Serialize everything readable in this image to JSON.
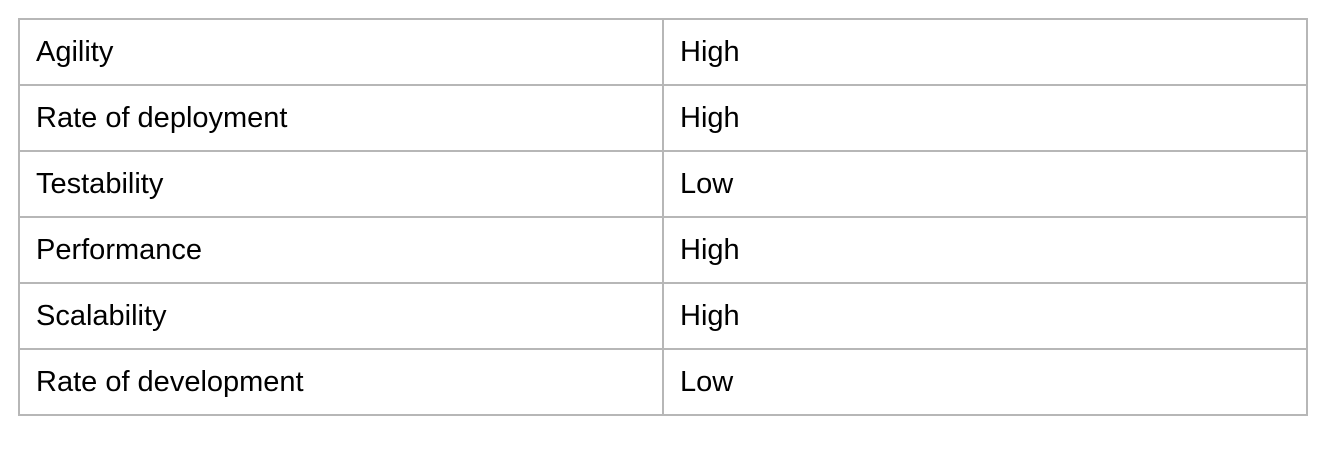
{
  "table": {
    "rows": [
      {
        "attribute": "Agility",
        "rating": "High"
      },
      {
        "attribute": "Rate of deployment",
        "rating": "High"
      },
      {
        "attribute": "Testability",
        "rating": "Low"
      },
      {
        "attribute": "Performance",
        "rating": "High"
      },
      {
        "attribute": "Scalability",
        "rating": "High"
      },
      {
        "attribute": "Rate of development",
        "rating": "Low"
      }
    ]
  }
}
